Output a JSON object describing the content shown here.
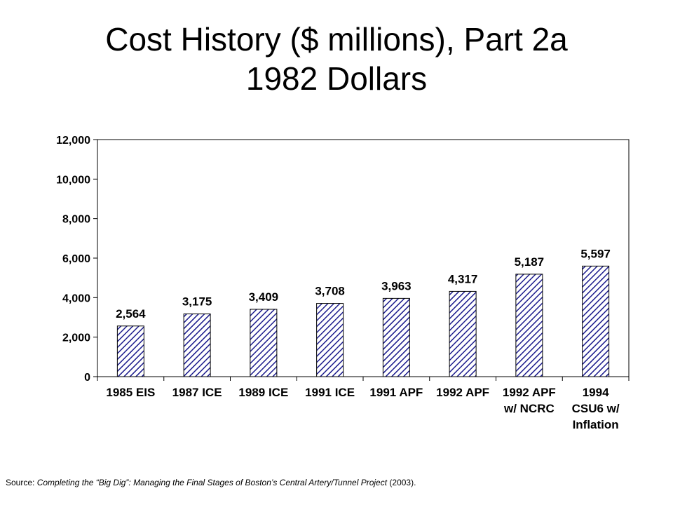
{
  "title": {
    "line1": "Cost History ($ millions), Part 2a",
    "line2": "1982 Dollars"
  },
  "source": {
    "prefix": "Source: ",
    "work": "Completing the “Big Dig”: Managing the Final Stages of Boston’s Central Artery/Tunnel Project",
    "suffix": " (2003)."
  },
  "chart_data": {
    "type": "bar",
    "categories": [
      [
        "1985 EIS"
      ],
      [
        "1987 ICE"
      ],
      [
        "1989 ICE"
      ],
      [
        "1991 ICE"
      ],
      [
        "1991 APF"
      ],
      [
        "1992 APF"
      ],
      [
        "1992 APF",
        "w/ NCRC"
      ],
      [
        "1994",
        "CSU6 w/",
        "Inflation"
      ]
    ],
    "values": [
      2564,
      3175,
      3409,
      3708,
      3963,
      4317,
      5187,
      5597
    ],
    "value_labels": [
      "2,564",
      "3,175",
      "3,409",
      "3,708",
      "3,963",
      "4,317",
      "5,187",
      "5,597"
    ],
    "y_ticks": [
      0,
      2000,
      4000,
      6000,
      8000,
      10000,
      12000
    ],
    "y_tick_labels": [
      "0",
      "2,000",
      "4,000",
      "6,000",
      "8,000",
      "10,000",
      "12,000"
    ],
    "ylim": [
      0,
      12000
    ],
    "bar_fill": "diagonal-hatch",
    "bar_color": "#1a1a8c",
    "grid": false,
    "legend": "none"
  }
}
